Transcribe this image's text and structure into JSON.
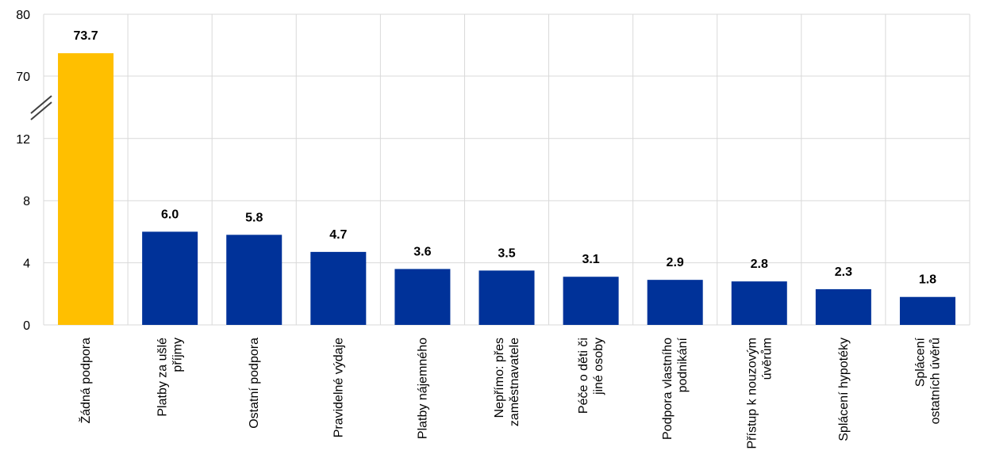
{
  "chart_data": {
    "type": "bar",
    "categories": [
      "Žádná podpora",
      "Platby za ušlé příjmy",
      "Ostatní podpora",
      "Pravidelné výdaje",
      "Platby nájemného",
      "Nepřímo: přes zaměstnavatele",
      "Péče o děti či jiné osoby",
      "Podpora vlastního podnikání",
      "Přístup k nouzovým úvěrům",
      "Splácení hypotéky",
      "Splácení ostatních úvěrů"
    ],
    "category_lines": [
      [
        "Žádná podpora"
      ],
      [
        "Platby za ušlé",
        "příjmy"
      ],
      [
        "Ostatní podpora"
      ],
      [
        "Pravidelné výdaje"
      ],
      [
        "Platby nájemného"
      ],
      [
        "Nepřímo: přes",
        "zaměstnavatele"
      ],
      [
        "Péče o děti či",
        "jiné osoby"
      ],
      [
        "Podpora vlastního",
        "podnikání"
      ],
      [
        "Přístup k nouzovým",
        "úvěrům"
      ],
      [
        "Splácení hypotéky"
      ],
      [
        "Splácení",
        "ostatních úvěrů"
      ]
    ],
    "values": [
      73.7,
      6.0,
      5.8,
      4.7,
      3.6,
      3.5,
      3.1,
      2.9,
      2.8,
      2.3,
      1.8
    ],
    "data_labels": [
      "73.7",
      "6.0",
      "5.8",
      "4.7",
      "3.6",
      "3.5",
      "3.1",
      "2.9",
      "2.8",
      "2.3",
      "1.8"
    ],
    "y_ticks_lower": [
      0,
      4,
      8,
      12
    ],
    "y_ticks_upper": [
      70,
      80
    ],
    "ylim_lower": [
      0,
      16
    ],
    "ylim_upper": [
      70,
      80
    ],
    "axis_break": true,
    "grid": true,
    "colors": {
      "highlight": "#FFBF00",
      "bars": "#003299",
      "grid": "#D9D9D9"
    }
  }
}
